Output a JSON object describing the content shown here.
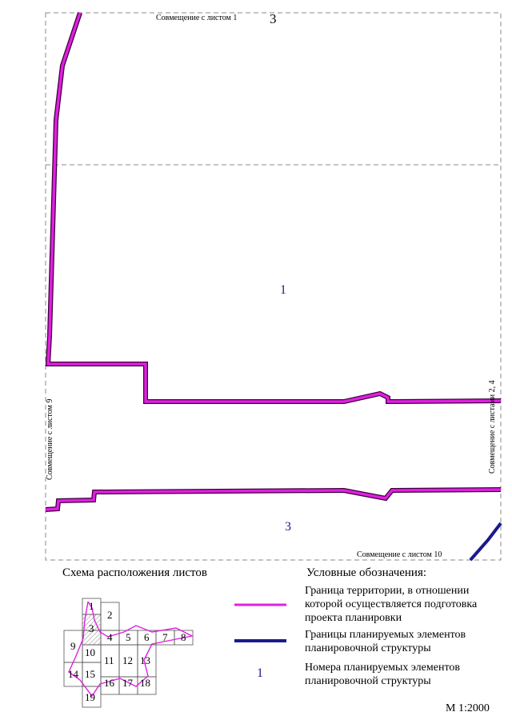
{
  "map": {
    "sheet_label_top": "3",
    "sheet_label_center": "1",
    "sheet_label_bottom": "3",
    "joins": {
      "top": "Совмещение с листом 1",
      "left": "Совмещение с листом 9",
      "right": "Совмещение с листами 2, 4",
      "bottom": "Совмещение с листом 10"
    }
  },
  "key_map": {
    "title": "Схема расположения листов",
    "cells": [
      "1",
      "2",
      "3",
      "4",
      "5",
      "6",
      "7",
      "8",
      "9",
      "10",
      "11",
      "12",
      "13",
      "14",
      "15",
      "16",
      "17",
      "18",
      "19"
    ]
  },
  "legend": {
    "title": "Условные обозначения:",
    "items": [
      {
        "text": "Граница территории, в отношении которой осуществляется подготовка проекта планировки",
        "color": "#e020e0"
      },
      {
        "text": "Границы планируемых элементов планировочной структуры",
        "color": "#1a1a8c"
      },
      {
        "symbol": "1",
        "text": "Номера планируемых элементов планировочной структуры",
        "color": "#1a1a8c"
      }
    ]
  },
  "scale": "М 1:2000",
  "colors": {
    "territory_boundary": "#e020e0",
    "structure_boundary": "#1a1a8c",
    "frame": "#888888"
  }
}
